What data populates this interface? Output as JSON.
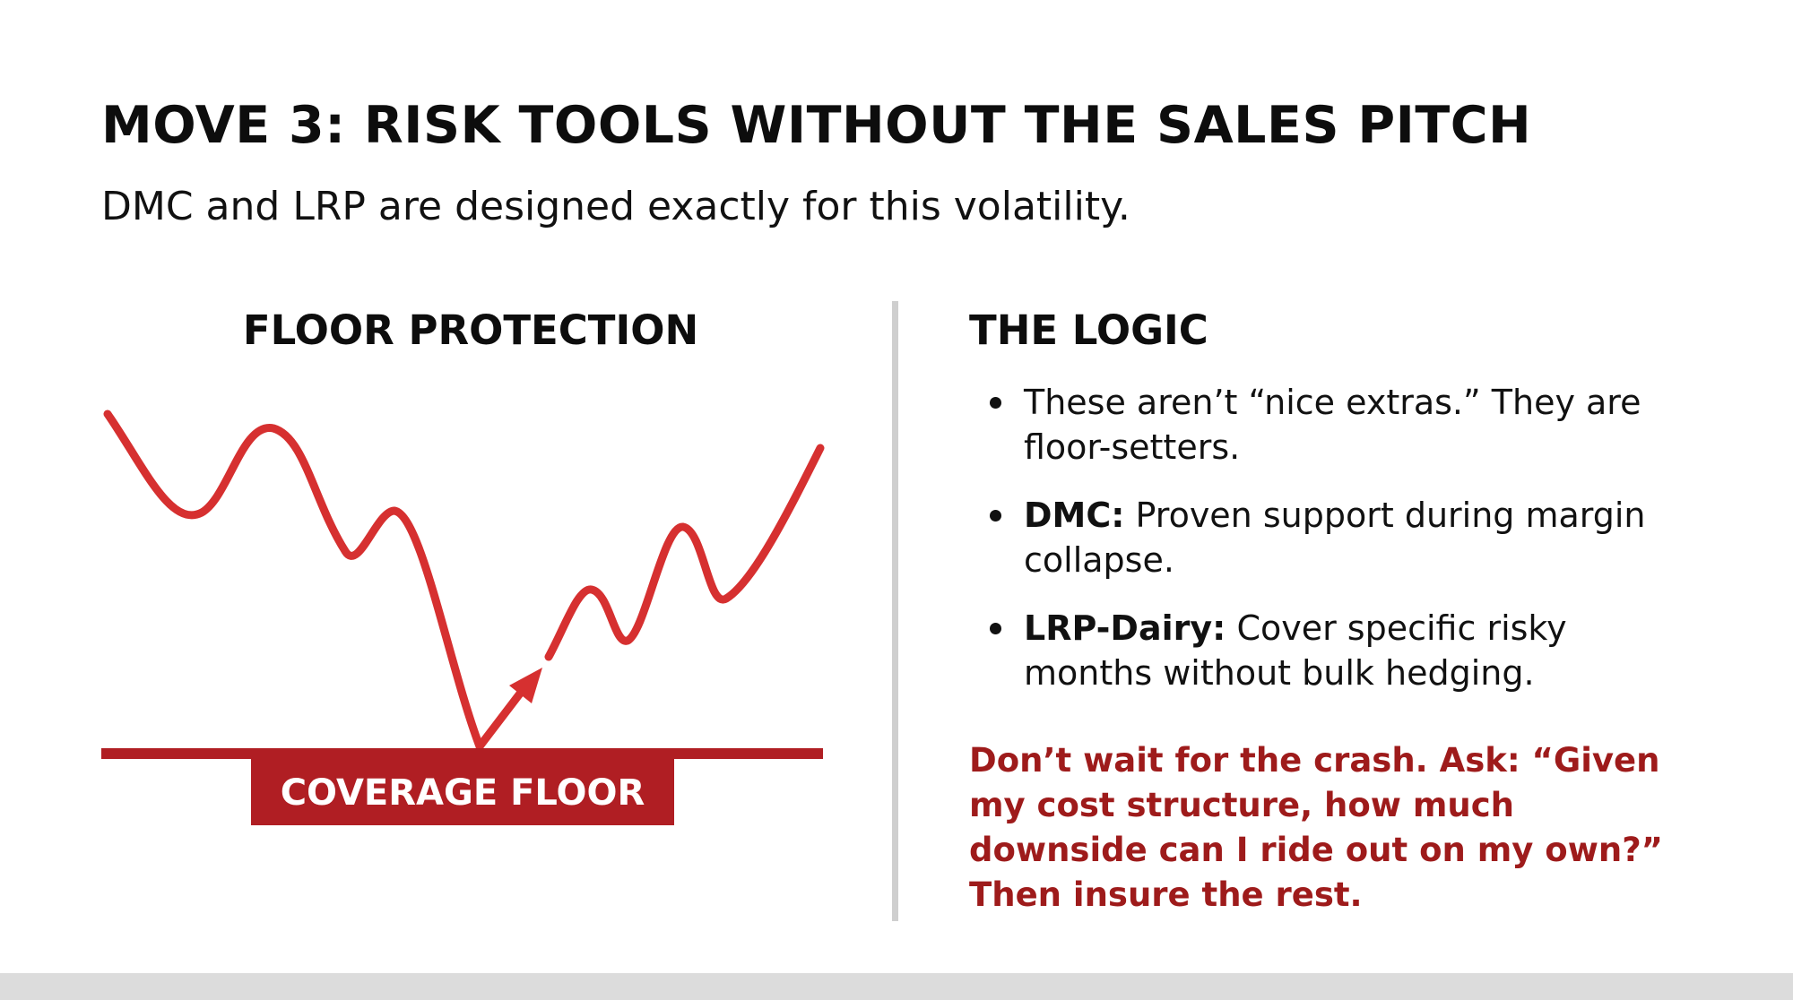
{
  "slide": {
    "title": "MOVE 3: RISK TOOLS WITHOUT THE SALES PITCH",
    "subtitle": "DMC and LRP are designed exactly for this volatility."
  },
  "left_panel": {
    "heading": "FLOOR PROTECTION",
    "floor_label": "COVERAGE FLOOR",
    "colors": {
      "line": "#d63030",
      "arrow": "#d63030",
      "floor": "#b01e23"
    }
  },
  "right_panel": {
    "heading": "THE LOGIC",
    "bullets": [
      {
        "bold": "",
        "text": "These aren’t “nice extras.” They are floor-setters."
      },
      {
        "bold": "DMC:",
        "text": " Proven support during margin collapse."
      },
      {
        "bold": "LRP-Dairy:",
        "text": " Cover specific risky months without bulk hedging."
      }
    ],
    "callout": "Don’t wait for the crash. Ask: “Given my cost structure, how much downside can I ride out on my own?” Then insure the rest.",
    "callout_color": "#9e1b1b"
  }
}
